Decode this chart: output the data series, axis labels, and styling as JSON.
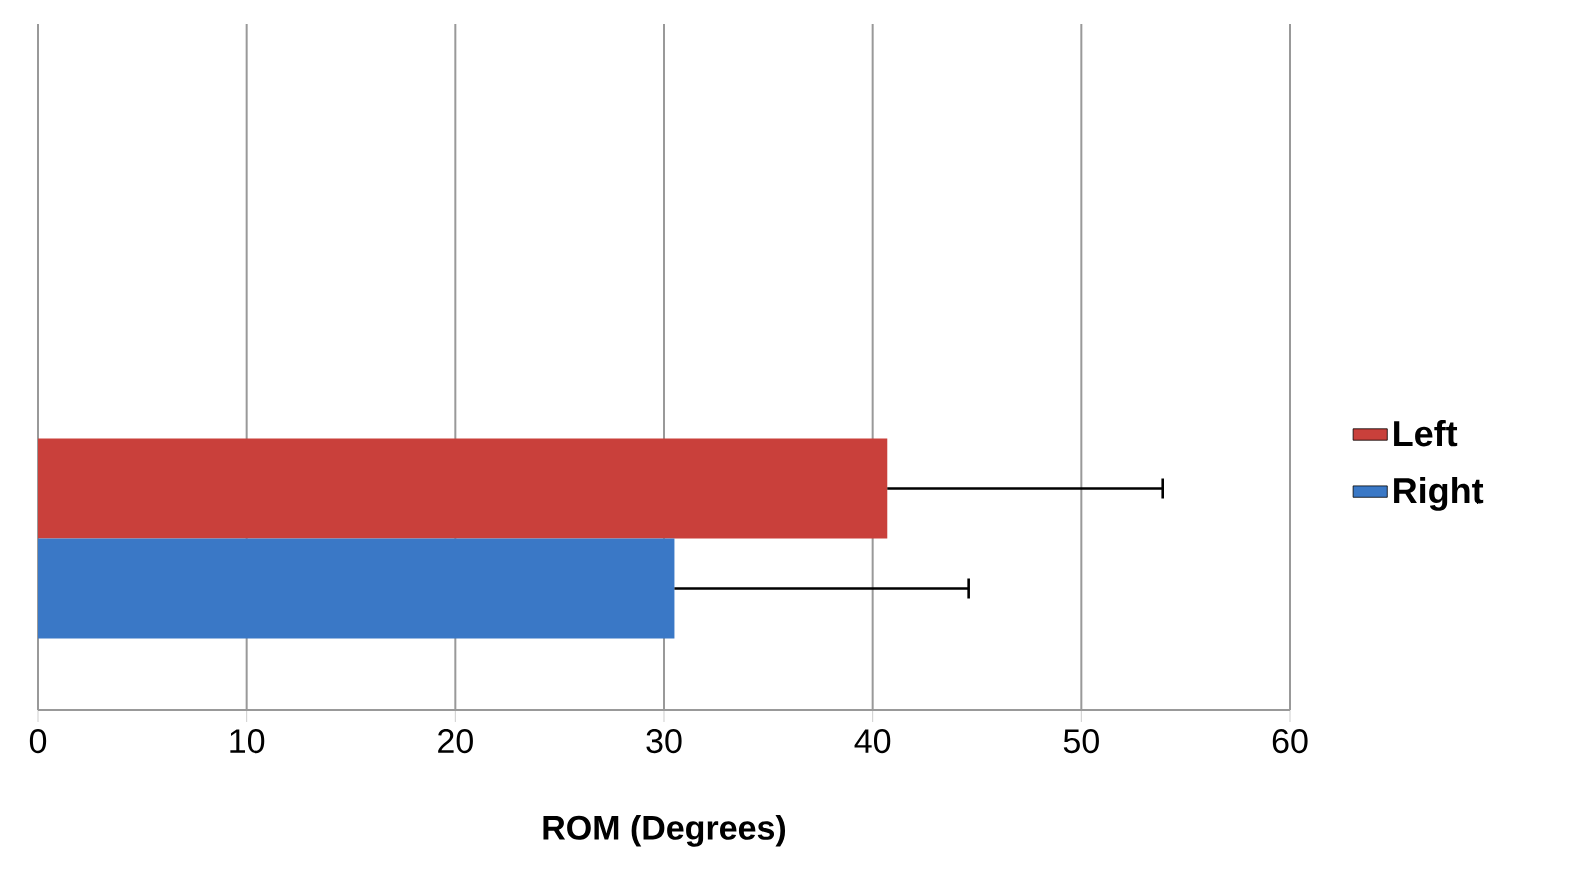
{
  "chart_data": {
    "type": "bar",
    "orientation": "horizontal",
    "xlabel": "ROM (Degrees)",
    "categories": [
      null,
      null
    ],
    "series": [
      {
        "name": "Left",
        "color": "#c9403b",
        "values": [
          null,
          40.7
        ],
        "errors": [
          null,
          [
            40.7,
            53.9
          ]
        ]
      },
      {
        "name": "Right",
        "color": "#3a78c6",
        "values": [
          null,
          30.5
        ],
        "errors": [
          null,
          [
            30.5,
            44.6
          ]
        ]
      }
    ],
    "xlim": [
      0,
      60
    ],
    "xticks": [
      0,
      10,
      20,
      30,
      40,
      50,
      60
    ],
    "grid": "x",
    "legend": "right"
  }
}
